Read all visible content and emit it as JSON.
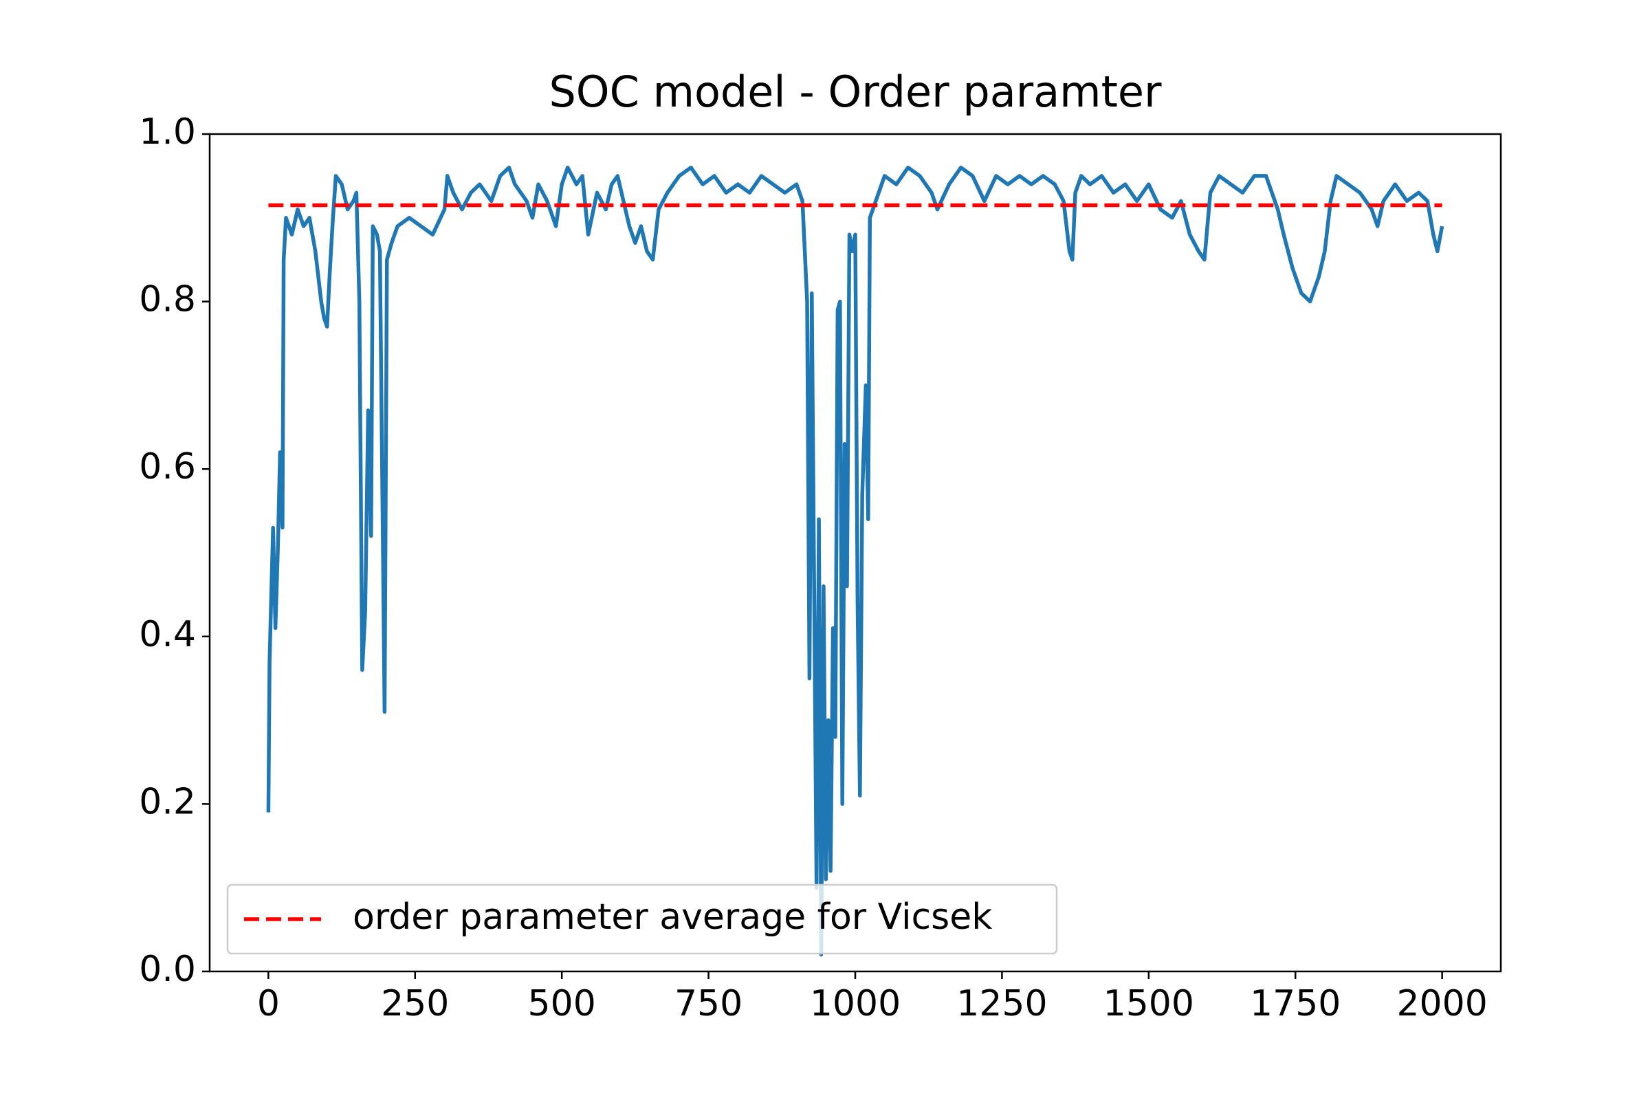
{
  "chart_data": {
    "type": "line",
    "title": "SOC model - Order paramter",
    "xlim": [
      -100,
      2100
    ],
    "ylim": [
      0,
      1
    ],
    "xticks": [
      0,
      250,
      500,
      750,
      1000,
      1250,
      1500,
      1750,
      2000
    ],
    "yticks": [
      {
        "value": 0,
        "label": "0.0"
      },
      {
        "value": 0.2,
        "label": "0.2"
      },
      {
        "value": 0.4,
        "label": "0.4"
      },
      {
        "value": 0.6,
        "label": "0.6"
      },
      {
        "value": 0.8,
        "label": "0.8"
      },
      {
        "value": 1,
        "label": "1.0"
      }
    ],
    "legend": "lower left",
    "series": [
      {
        "color": "#1f77b4",
        "dash": false,
        "x": [
          0,
          2,
          5,
          8,
          12,
          16,
          20,
          24,
          26,
          30,
          40,
          50,
          60,
          70,
          80,
          90,
          95,
          100,
          105,
          110,
          115,
          125,
          135,
          145,
          150,
          155,
          160,
          165,
          170,
          175,
          178,
          185,
          190,
          196,
          198,
          202,
          210,
          220,
          240,
          260,
          280,
          300,
          305,
          315,
          330,
          345,
          360,
          380,
          395,
          410,
          420,
          440,
          450,
          460,
          475,
          490,
          500,
          510,
          525,
          535,
          545,
          560,
          575,
          585,
          595,
          605,
          615,
          625,
          635,
          645,
          655,
          665,
          680,
          700,
          720,
          740,
          760,
          780,
          800,
          820,
          840,
          860,
          880,
          900,
          910,
          918,
          922,
          926,
          930,
          934,
          938,
          942,
          946,
          950,
          954,
          958,
          962,
          966,
          970,
          974,
          978,
          982,
          986,
          990,
          995,
          1000,
          1004,
          1008,
          1012,
          1018,
          1022,
          1025,
          1030,
          1040,
          1050,
          1070,
          1090,
          1110,
          1130,
          1140,
          1160,
          1180,
          1200,
          1220,
          1240,
          1260,
          1280,
          1300,
          1320,
          1340,
          1355,
          1365,
          1370,
          1375,
          1385,
          1400,
          1420,
          1440,
          1460,
          1480,
          1500,
          1520,
          1540,
          1555,
          1570,
          1585,
          1595,
          1605,
          1620,
          1640,
          1660,
          1680,
          1700,
          1720,
          1730,
          1745,
          1760,
          1775,
          1790,
          1800,
          1810,
          1820,
          1840,
          1860,
          1870,
          1880,
          1890,
          1900,
          1920,
          1940,
          1960,
          1975,
          1985,
          1992,
          2000
        ],
        "values": [
          0.19,
          0.37,
          0.45,
          0.53,
          0.41,
          0.5,
          0.62,
          0.53,
          0.85,
          0.9,
          0.88,
          0.91,
          0.89,
          0.9,
          0.86,
          0.8,
          0.78,
          0.77,
          0.84,
          0.9,
          0.95,
          0.94,
          0.91,
          0.92,
          0.93,
          0.8,
          0.36,
          0.43,
          0.67,
          0.52,
          0.89,
          0.88,
          0.86,
          0.45,
          0.31,
          0.85,
          0.87,
          0.89,
          0.9,
          0.89,
          0.88,
          0.91,
          0.95,
          0.93,
          0.91,
          0.93,
          0.94,
          0.92,
          0.95,
          0.96,
          0.94,
          0.92,
          0.9,
          0.94,
          0.92,
          0.89,
          0.94,
          0.96,
          0.94,
          0.95,
          0.88,
          0.93,
          0.91,
          0.94,
          0.95,
          0.92,
          0.89,
          0.87,
          0.89,
          0.86,
          0.85,
          0.91,
          0.93,
          0.95,
          0.96,
          0.94,
          0.95,
          0.93,
          0.94,
          0.93,
          0.95,
          0.94,
          0.93,
          0.94,
          0.92,
          0.8,
          0.35,
          0.81,
          0.46,
          0.1,
          0.54,
          0.02,
          0.46,
          0.11,
          0.3,
          0.12,
          0.41,
          0.28,
          0.79,
          0.8,
          0.2,
          0.63,
          0.46,
          0.88,
          0.86,
          0.88,
          0.44,
          0.21,
          0.57,
          0.7,
          0.54,
          0.9,
          0.91,
          0.93,
          0.95,
          0.94,
          0.96,
          0.95,
          0.93,
          0.91,
          0.94,
          0.96,
          0.95,
          0.92,
          0.95,
          0.94,
          0.95,
          0.94,
          0.95,
          0.94,
          0.92,
          0.86,
          0.85,
          0.93,
          0.95,
          0.94,
          0.95,
          0.93,
          0.94,
          0.92,
          0.94,
          0.91,
          0.9,
          0.92,
          0.88,
          0.86,
          0.85,
          0.93,
          0.95,
          0.94,
          0.93,
          0.95,
          0.95,
          0.91,
          0.88,
          0.84,
          0.81,
          0.8,
          0.83,
          0.86,
          0.92,
          0.95,
          0.94,
          0.93,
          0.92,
          0.91,
          0.89,
          0.92,
          0.94,
          0.92,
          0.93,
          0.92,
          0.88,
          0.86,
          0.89
        ]
      },
      {
        "name": "order parameter average for Vicsek",
        "color": "#ff0000",
        "dash": true,
        "x": [
          0,
          2000
        ],
        "values": [
          0.915,
          0.915
        ]
      }
    ]
  }
}
